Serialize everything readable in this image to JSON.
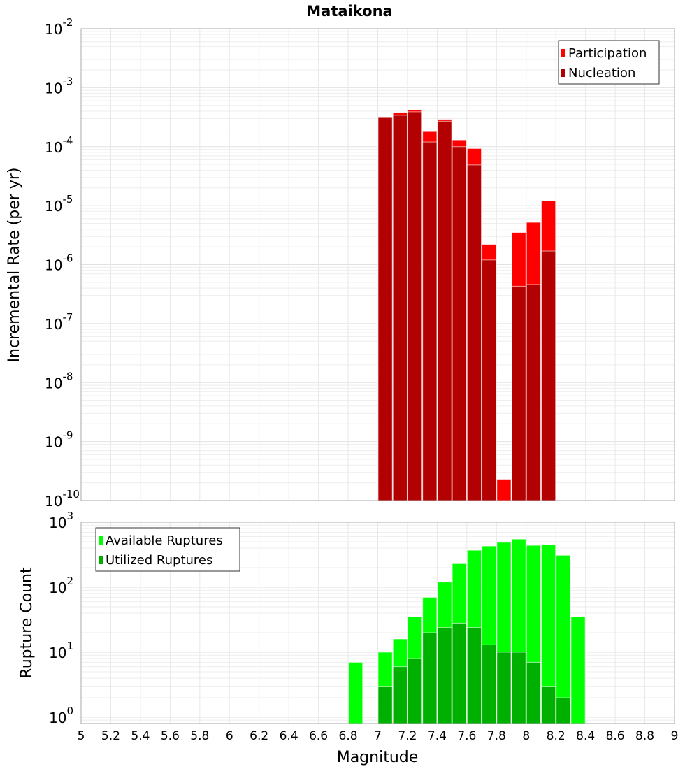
{
  "chart_data": [
    {
      "type": "bar",
      "title": "Mataikona",
      "xlabel": "Magnitude",
      "ylabel": "Incremental Rate (per yr)",
      "yscale": "log",
      "ylim": [
        1e-10,
        0.01
      ],
      "xlim": [
        5,
        9
      ],
      "y_tick_exponents": [
        -10,
        -9,
        -8,
        -7,
        -6,
        -5,
        -4,
        -3,
        -2
      ],
      "legend_position": "top-right",
      "bin_width": 0.1,
      "x": [
        7.05,
        7.15,
        7.25,
        7.35,
        7.45,
        7.55,
        7.65,
        7.75,
        7.85,
        7.95,
        8.05,
        8.15
      ],
      "series": [
        {
          "name": "Participation",
          "color": "#ff0000",
          "values": [
            0.00032,
            0.00038,
            0.00042,
            0.00018,
            0.00029,
            0.00013,
            9.3e-05,
            2.2e-06,
            2.3e-10,
            3.5e-06,
            5.2e-06,
            1.2e-05
          ]
        },
        {
          "name": "Nucleation",
          "color": "#b30000",
          "values": [
            0.00031,
            0.00034,
            0.00039,
            0.00012,
            0.00027,
            0.0001,
            4.9e-05,
            1.2e-06,
            null,
            4.3e-07,
            4.6e-07,
            1.7e-06
          ]
        }
      ]
    },
    {
      "type": "bar",
      "xlabel": "Magnitude",
      "ylabel": "Rupture Count",
      "yscale": "log",
      "ylim": [
        0.8,
        1000
      ],
      "xlim": [
        5,
        9
      ],
      "y_tick_exponents": [
        0,
        1,
        2,
        3
      ],
      "x_ticks": [
        "5",
        "5.2",
        "5.4",
        "5.6",
        "5.8",
        "6",
        "6.2",
        "6.4",
        "6.6",
        "6.8",
        "7",
        "7.2",
        "7.4",
        "7.6",
        "7.8",
        "8",
        "8.2",
        "8.4",
        "8.6",
        "8.8",
        "9"
      ],
      "legend_position": "top-left",
      "bin_width": 0.1,
      "x": [
        6.85,
        7.05,
        7.15,
        7.25,
        7.35,
        7.45,
        7.55,
        7.65,
        7.75,
        7.85,
        7.95,
        8.05,
        8.15,
        8.25,
        8.35
      ],
      "series": [
        {
          "name": "Available Ruptures",
          "color": "#00ff00",
          "values": [
            7,
            10,
            16,
            35,
            70,
            120,
            230,
            370,
            430,
            490,
            550,
            440,
            450,
            310,
            35
          ]
        },
        {
          "name": "Utilized Ruptures",
          "color": "#00b000",
          "values": [
            null,
            3,
            6,
            8,
            20,
            24,
            28,
            24,
            13,
            10,
            10,
            7,
            3,
            2,
            null
          ]
        }
      ]
    }
  ]
}
